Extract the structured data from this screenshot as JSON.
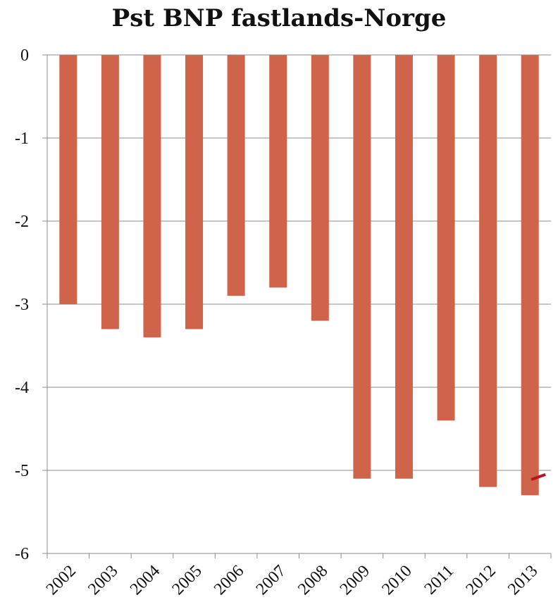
{
  "chart_data": {
    "type": "bar",
    "title": "Pst BNP fastlands-Norge",
    "xlabel": "",
    "ylabel": "",
    "categories": [
      "2002",
      "2003",
      "2004",
      "2005",
      "2006",
      "2007",
      "2008",
      "2009",
      "2010",
      "2011",
      "2012",
      "2013"
    ],
    "values": [
      -3.0,
      -3.3,
      -3.4,
      -3.3,
      -2.9,
      -2.8,
      -3.2,
      -5.1,
      -5.1,
      -4.4,
      -5.2,
      -5.3
    ],
    "ylim": [
      -6,
      0
    ],
    "yticks": [
      0,
      -1,
      -2,
      -3,
      -4,
      -5,
      -6
    ],
    "grid": true,
    "legend": "none",
    "bar_color": "#d0644a",
    "marker_color": "#b8141b"
  }
}
